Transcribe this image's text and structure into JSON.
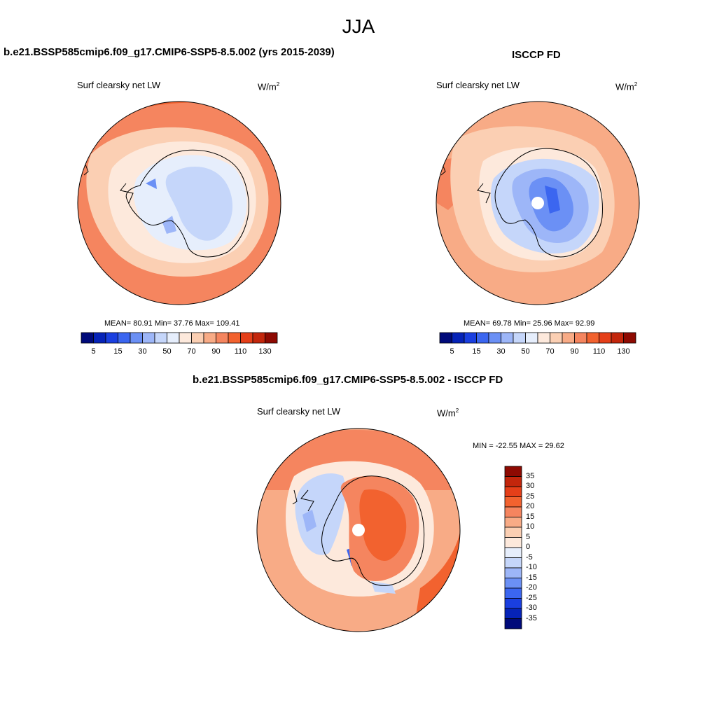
{
  "main_title": "JJA",
  "panel_left": {
    "title": "b.e21.BSSP585cmip6.f09_g17.CMIP6-SSP5-8.5.002 (yrs 2015-2039)",
    "subtitle": "Surf clearsky net LW",
    "units_base": "W/m",
    "units_exp": "2",
    "stats": "MEAN=  80.91  Min=  37.76  Max= 109.41"
  },
  "panel_right": {
    "title": "ISCCP FD",
    "subtitle": "Surf clearsky net LW",
    "units_base": "W/m",
    "units_exp": "2",
    "stats": "MEAN=  69.78  Min=  25.96  Max=  92.99"
  },
  "panel_diff": {
    "title": "b.e21.BSSP585cmip6.f09_g17.CMIP6-SSP5-8.5.002 - ISCCP FD",
    "subtitle": "Surf clearsky net LW",
    "units_base": "W/m",
    "units_exp": "2",
    "stats": "MIN = -22.55 MAX =  29.62"
  },
  "colorbar_abs": {
    "colors": [
      "#000a7a",
      "#0623b8",
      "#1a3fe0",
      "#3b66f0",
      "#6b90f5",
      "#9db6f8",
      "#c5d6fa",
      "#e6eefc",
      "#fde9dc",
      "#fbcfb3",
      "#f8ab86",
      "#f5855f",
      "#f2622f",
      "#e53f19",
      "#c3260c",
      "#8e0a02"
    ],
    "tick_labels": [
      "5",
      "15",
      "30",
      "50",
      "70",
      "90",
      "110",
      "130"
    ]
  },
  "colorbar_diff": {
    "colors": [
      "#8e0a02",
      "#c3260c",
      "#e53f19",
      "#f2622f",
      "#f5855f",
      "#f8ab86",
      "#fbcfb3",
      "#fde9dc",
      "#e6eefc",
      "#c5d6fa",
      "#9db6f8",
      "#6b90f5",
      "#3b66f0",
      "#1a3fe0",
      "#0623b8",
      "#000a7a"
    ],
    "tick_labels": [
      "35",
      "30",
      "25",
      "20",
      "15",
      "10",
      "5",
      "0",
      "-5",
      "-10",
      "-15",
      "-20",
      "-25",
      "-30",
      "-35"
    ]
  }
}
